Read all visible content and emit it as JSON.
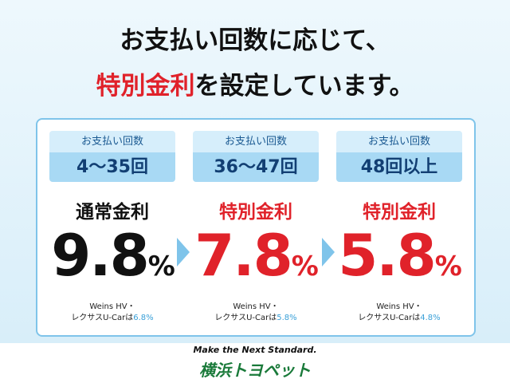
{
  "headline": {
    "line1": "お支払い回数に応じて、",
    "highlight": "特別金利",
    "line2_rest": "を設定しています。"
  },
  "plans": [
    {
      "label": "お支払い回数",
      "count": "4〜35回",
      "rate_name": "通常金利",
      "rate": "9.8",
      "unit": "%",
      "note1": "Weins HV・",
      "note2": "レクサスU-Carは",
      "note_rate": "6.8%"
    },
    {
      "label": "お支払い回数",
      "count": "36〜47回",
      "rate_name": "特別金利",
      "rate": "7.8",
      "unit": "%",
      "note1": "Weins HV・",
      "note2": "レクサスU-Carは",
      "note_rate": "5.8%"
    },
    {
      "label": "お支払い回数",
      "count": "48回以上",
      "rate_name": "特別金利",
      "rate": "5.8",
      "unit": "%",
      "note1": "Weins HV・",
      "note2": "レクサスU-Carは",
      "note_rate": "4.8%"
    }
  ],
  "footer": {
    "tagline": "Make the Next Standard.",
    "brand": "横浜トヨペット"
  }
}
